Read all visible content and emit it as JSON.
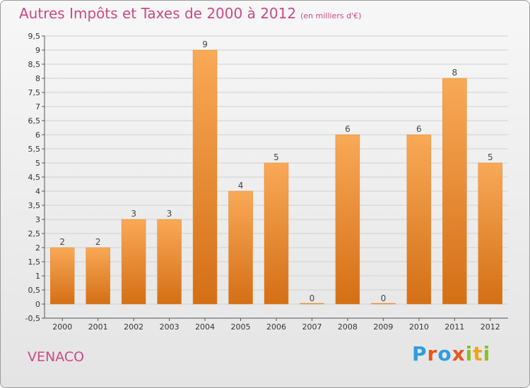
{
  "header": {
    "title": "Autres Impôts et Taxes de 2000 à 2012",
    "unit": "(en milliers d'€)"
  },
  "footer": {
    "commune": "VENACO",
    "logo_letters": [
      "P",
      "r",
      "o",
      "x",
      "i",
      "t",
      "i"
    ]
  },
  "colors": {
    "bar_top": "#f9a957",
    "bar_bottom": "#d46f15",
    "title": "#c94a84",
    "logo": [
      "#2d9de0",
      "#e8561e",
      "#2d9de0",
      "#e8561e",
      "#8cbf24",
      "#f2a31b",
      "#8cbf24"
    ]
  },
  "chart_data": {
    "type": "bar",
    "title": "Autres Impôts et Taxes de 2000 à 2012",
    "xlabel": "",
    "ylabel": "",
    "categories": [
      "2000",
      "2001",
      "2002",
      "2003",
      "2004",
      "2005",
      "2006",
      "2007",
      "2008",
      "2009",
      "2010",
      "2011",
      "2012"
    ],
    "values": [
      2,
      2,
      3,
      3,
      9,
      4,
      5,
      0,
      6,
      0,
      6,
      8,
      5
    ],
    "value_labels": [
      "2",
      "2",
      "3",
      "3",
      "9",
      "4",
      "5",
      "0",
      "6",
      "0",
      "6",
      "8",
      "5"
    ],
    "ylim": [
      -0.5,
      9.5
    ],
    "yticks": [
      -0.5,
      0,
      0.5,
      1,
      1.5,
      2,
      2.5,
      3,
      3.5,
      4,
      4.5,
      5,
      5.5,
      6,
      6.5,
      7,
      7.5,
      8,
      8.5,
      9,
      9.5
    ],
    "ytick_labels": [
      "-0,5",
      "0",
      "0,5",
      "1",
      "1,5",
      "2",
      "2,5",
      "3",
      "3,5",
      "4",
      "4,5",
      "5",
      "5,5",
      "6",
      "6,5",
      "7",
      "7,5",
      "8",
      "8,5",
      "9",
      "9,5"
    ],
    "grid": true,
    "legend": "none"
  }
}
